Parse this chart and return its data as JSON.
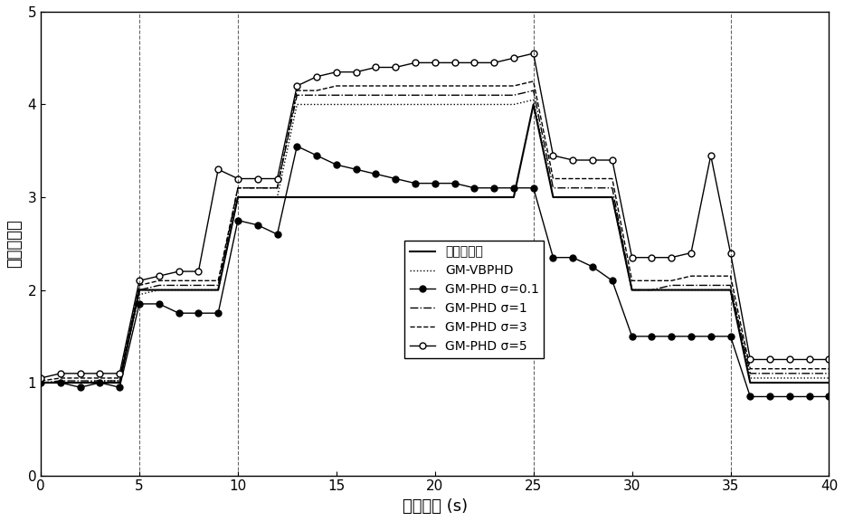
{
  "title": "",
  "xlabel": "采样时刻 (s)",
  "ylabel": "目标数估计",
  "xlim": [
    0,
    40
  ],
  "ylim": [
    0,
    5
  ],
  "xticks": [
    0,
    5,
    10,
    15,
    20,
    25,
    30,
    35,
    40
  ],
  "yticks": [
    0,
    1,
    2,
    3,
    4,
    5
  ],
  "true_targets": {
    "x": [
      0,
      1,
      2,
      3,
      4,
      5,
      6,
      7,
      8,
      9,
      10,
      11,
      12,
      13,
      14,
      15,
      16,
      17,
      18,
      19,
      20,
      21,
      22,
      23,
      24,
      25,
      26,
      27,
      28,
      29,
      30,
      31,
      32,
      33,
      34,
      35,
      36,
      37,
      38,
      39,
      40
    ],
    "y": [
      1,
      1,
      1,
      1,
      1,
      2,
      2,
      2,
      2,
      2,
      3,
      3,
      3,
      3,
      3,
      3,
      3,
      3,
      3,
      3,
      3,
      3,
      3,
      3,
      3,
      4,
      3,
      3,
      3,
      3,
      2,
      2,
      2,
      2,
      2,
      2,
      1,
      1,
      1,
      1,
      1
    ]
  },
  "gm_vbphd": {
    "x": [
      0,
      1,
      2,
      3,
      4,
      5,
      6,
      7,
      8,
      9,
      10,
      11,
      12,
      13,
      14,
      15,
      16,
      17,
      18,
      19,
      20,
      21,
      22,
      23,
      24,
      25,
      26,
      27,
      28,
      29,
      30,
      31,
      32,
      33,
      34,
      35,
      36,
      37,
      38,
      39,
      40
    ],
    "y": [
      1.0,
      1.0,
      1.0,
      1.02,
      1.02,
      1.95,
      2.0,
      2.0,
      2.0,
      2.0,
      3.0,
      3.0,
      3.0,
      4.0,
      4.0,
      4.0,
      4.0,
      4.0,
      4.0,
      4.0,
      4.0,
      4.0,
      4.0,
      4.0,
      4.0,
      4.05,
      3.0,
      3.0,
      3.0,
      3.0,
      2.0,
      2.0,
      2.0,
      2.0,
      2.0,
      2.0,
      1.05,
      1.05,
      1.05,
      1.05,
      1.05
    ]
  },
  "gm_phd_01": {
    "x": [
      0,
      1,
      2,
      3,
      4,
      5,
      6,
      7,
      8,
      9,
      10,
      11,
      12,
      13,
      14,
      15,
      16,
      17,
      18,
      19,
      20,
      21,
      22,
      23,
      24,
      25,
      26,
      27,
      28,
      29,
      30,
      31,
      32,
      33,
      34,
      35,
      36,
      37,
      38,
      39,
      40
    ],
    "y": [
      1.0,
      1.0,
      0.95,
      1.0,
      0.95,
      1.85,
      1.85,
      1.75,
      1.75,
      1.75,
      2.75,
      2.7,
      2.6,
      3.55,
      3.45,
      3.35,
      3.3,
      3.25,
      3.2,
      3.15,
      3.15,
      3.15,
      3.1,
      3.1,
      3.1,
      3.1,
      2.35,
      2.35,
      2.25,
      2.1,
      1.5,
      1.5,
      1.5,
      1.5,
      1.5,
      1.5,
      0.85,
      0.85,
      0.85,
      0.85,
      0.85
    ]
  },
  "gm_phd_1": {
    "x": [
      0,
      1,
      2,
      3,
      4,
      5,
      6,
      7,
      8,
      9,
      10,
      11,
      12,
      13,
      14,
      15,
      16,
      17,
      18,
      19,
      20,
      21,
      22,
      23,
      24,
      25,
      26,
      27,
      28,
      29,
      30,
      31,
      32,
      33,
      34,
      35,
      36,
      37,
      38,
      39,
      40
    ],
    "y": [
      1.0,
      1.02,
      1.02,
      1.02,
      1.02,
      2.0,
      2.05,
      2.05,
      2.05,
      2.05,
      3.1,
      3.1,
      3.1,
      4.1,
      4.1,
      4.1,
      4.1,
      4.1,
      4.1,
      4.1,
      4.1,
      4.1,
      4.1,
      4.1,
      4.1,
      4.15,
      3.1,
      3.1,
      3.1,
      3.1,
      2.0,
      2.0,
      2.05,
      2.05,
      2.05,
      2.05,
      1.1,
      1.1,
      1.1,
      1.1,
      1.1
    ]
  },
  "gm_phd_3": {
    "x": [
      0,
      1,
      2,
      3,
      4,
      5,
      6,
      7,
      8,
      9,
      10,
      11,
      12,
      13,
      14,
      15,
      16,
      17,
      18,
      19,
      20,
      21,
      22,
      23,
      24,
      25,
      26,
      27,
      28,
      29,
      30,
      31,
      32,
      33,
      34,
      35,
      36,
      37,
      38,
      39,
      40
    ],
    "y": [
      1.02,
      1.05,
      1.05,
      1.05,
      1.05,
      2.05,
      2.1,
      2.1,
      2.1,
      2.1,
      3.1,
      3.1,
      3.1,
      4.15,
      4.15,
      4.2,
      4.2,
      4.2,
      4.2,
      4.2,
      4.2,
      4.2,
      4.2,
      4.2,
      4.2,
      4.25,
      3.2,
      3.2,
      3.2,
      3.2,
      2.1,
      2.1,
      2.1,
      2.15,
      2.15,
      2.15,
      1.15,
      1.15,
      1.15,
      1.15,
      1.15
    ]
  },
  "gm_phd_5": {
    "x": [
      0,
      1,
      2,
      3,
      4,
      5,
      6,
      7,
      8,
      9,
      10,
      11,
      12,
      13,
      14,
      15,
      16,
      17,
      18,
      19,
      20,
      21,
      22,
      23,
      24,
      25,
      26,
      27,
      28,
      29,
      30,
      31,
      32,
      33,
      34,
      35,
      36,
      37,
      38,
      39,
      40
    ],
    "y": [
      1.05,
      1.1,
      1.1,
      1.1,
      1.1,
      2.1,
      2.15,
      2.2,
      2.2,
      3.3,
      3.2,
      3.2,
      3.2,
      4.2,
      4.3,
      4.35,
      4.35,
      4.4,
      4.4,
      4.45,
      4.45,
      4.45,
      4.45,
      4.45,
      4.5,
      4.55,
      3.45,
      3.4,
      3.4,
      3.4,
      2.35,
      2.35,
      2.35,
      2.4,
      3.45,
      2.4,
      1.25,
      1.25,
      1.25,
      1.25,
      1.25
    ]
  },
  "legend_labels": [
    "真实目标数",
    "GM-VBPHD",
    "GM-PHD σ=0.1",
    "GM-PHD σ=1",
    "GM-PHD σ=3",
    "GM-PHD σ=5"
  ],
  "background_color": "#ffffff",
  "line_color": "#000000",
  "dashed_vlines": [
    5,
    10,
    25,
    35
  ]
}
